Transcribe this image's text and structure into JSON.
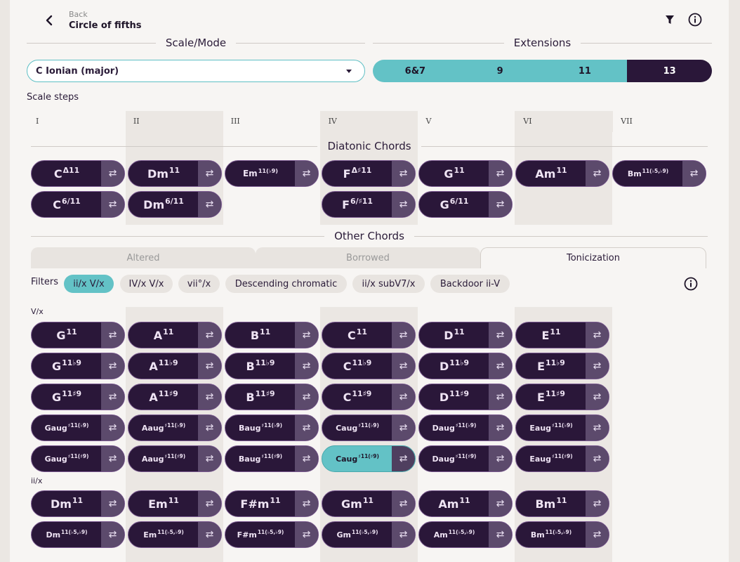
{
  "header": {
    "back_small": "Back",
    "back_title": "Circle of fifths",
    "filter_icon": "filter-icon",
    "info_icon": "info-icon"
  },
  "scale_mode": {
    "title": "Scale/Mode",
    "selected": "C Ionian (major)"
  },
  "extensions": {
    "title": "Extensions",
    "options": [
      "6&7",
      "9",
      "11",
      "13"
    ],
    "selected": "13"
  },
  "scale_steps": {
    "label": "Scale steps",
    "steps": [
      "I",
      "II",
      "III",
      "IV",
      "V",
      "VI",
      "VII"
    ]
  },
  "diatonic": {
    "title": "Diatonic Chords",
    "row1": [
      {
        "root": "C",
        "ext": "Δ11"
      },
      {
        "root": "Dm",
        "ext": "11"
      },
      {
        "root": "Em",
        "ext": "11(♭9)"
      },
      {
        "root": "F",
        "ext": "Δ♯11"
      },
      {
        "root": "G",
        "ext": "11"
      },
      {
        "root": "Am",
        "ext": "11"
      },
      {
        "root": "Bm",
        "ext": "11(♭5,♭9)"
      }
    ],
    "row2": [
      {
        "root": "C",
        "ext": "6/11"
      },
      {
        "root": "Dm",
        "ext": "6/11"
      },
      null,
      {
        "root": "F",
        "ext": "6/♯11"
      },
      {
        "root": "G",
        "ext": "6/11"
      },
      null,
      null
    ]
  },
  "other": {
    "title": "Other Chords",
    "tabs": [
      "Altered",
      "Borrowed",
      "Tonicization"
    ],
    "active_tab": "Tonicization",
    "filters_label": "Filters",
    "filters": [
      "ii/x V/x",
      "IV/x V/x",
      "vii°/x",
      "Descending chromatic",
      "ii/x subV7/x",
      "Backdoor ii-V"
    ],
    "active_filter": "ii/x V/x"
  },
  "vx": {
    "label": "V/x",
    "rows": [
      [
        {
          "root": "G",
          "ext": "11"
        },
        {
          "root": "A",
          "ext": "11"
        },
        {
          "root": "B",
          "ext": "11"
        },
        {
          "root": "C",
          "ext": "11"
        },
        {
          "root": "D",
          "ext": "11"
        },
        {
          "root": "E",
          "ext": "11"
        }
      ],
      [
        {
          "root": "G",
          "ext": "11♭9"
        },
        {
          "root": "A",
          "ext": "11♭9"
        },
        {
          "root": "B",
          "ext": "11♭9"
        },
        {
          "root": "C",
          "ext": "11♭9"
        },
        {
          "root": "D",
          "ext": "11♭9"
        },
        {
          "root": "E",
          "ext": "11♭9"
        }
      ],
      [
        {
          "root": "G",
          "ext": "11♯9"
        },
        {
          "root": "A",
          "ext": "11♯9"
        },
        {
          "root": "B",
          "ext": "11♯9"
        },
        {
          "root": "C",
          "ext": "11♯9"
        },
        {
          "root": "D",
          "ext": "11♯9"
        },
        {
          "root": "E",
          "ext": "11♯9"
        }
      ],
      [
        {
          "root": "Gaug",
          "ext": "♯11(♭9)"
        },
        {
          "root": "Aaug",
          "ext": "♯11(♭9)"
        },
        {
          "root": "Baug",
          "ext": "♯11(♭9)"
        },
        {
          "root": "Caug",
          "ext": "♯11(♭9)"
        },
        {
          "root": "Daug",
          "ext": "♯11(♭9)"
        },
        {
          "root": "Eaug",
          "ext": "♯11(♭9)"
        }
      ],
      [
        {
          "root": "Gaug",
          "ext": "♯11(♯9)"
        },
        {
          "root": "Aaug",
          "ext": "♯11(♯9)"
        },
        {
          "root": "Baug",
          "ext": "♯11(♯9)"
        },
        {
          "root": "Caug",
          "ext": "♯11(♯9)",
          "selected": true
        },
        {
          "root": "Daug",
          "ext": "♯11(♯9)"
        },
        {
          "root": "Eaug",
          "ext": "♯11(♯9)"
        }
      ]
    ]
  },
  "iix": {
    "label": "ii/x",
    "rows": [
      [
        {
          "root": "Dm",
          "ext": "11"
        },
        {
          "root": "Em",
          "ext": "11"
        },
        {
          "root": "F#m",
          "ext": "11"
        },
        {
          "root": "Gm",
          "ext": "11"
        },
        {
          "root": "Am",
          "ext": "11"
        },
        {
          "root": "Bm",
          "ext": "11"
        }
      ],
      [
        {
          "root": "Dm",
          "ext": "11(♭5,♭9)"
        },
        {
          "root": "Em",
          "ext": "11(♭5,♭9)"
        },
        {
          "root": "F#m",
          "ext": "11(♭5,♭9)"
        },
        {
          "root": "Gm",
          "ext": "11(♭5,♭9)"
        },
        {
          "root": "Am",
          "ext": "11(♭5,♭9)"
        },
        {
          "root": "Bm",
          "ext": "11(♭5,♭9)"
        }
      ]
    ]
  },
  "swap_icon": "⇄",
  "colors": {
    "accent": "#63c2c6",
    "chord_bg": "#2a1739",
    "swap_bg": "#5c4a6c"
  }
}
